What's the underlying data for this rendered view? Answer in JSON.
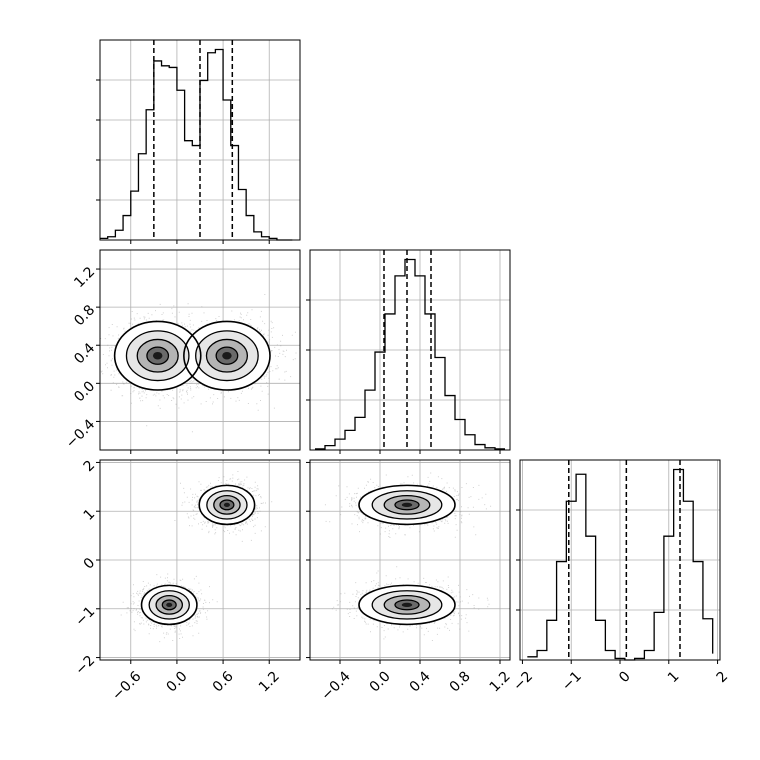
{
  "chart_data": {
    "type": "corner",
    "variables": 3,
    "grid": true,
    "quantiles": [
      0.16,
      0.5,
      0.84
    ],
    "histograms": [
      {
        "variable": 0,
        "xlim": [
          -1.0,
          1.6
        ],
        "bin_edges": [
          -1.0,
          -0.9,
          -0.8,
          -0.7,
          -0.6,
          -0.5,
          -0.4,
          -0.3,
          -0.2,
          -0.1,
          0.0,
          0.1,
          0.2,
          0.3,
          0.4,
          0.5,
          0.6,
          0.7,
          0.8,
          0.9,
          1.0,
          1.1,
          1.2,
          1.3,
          1.4,
          1.5
        ],
        "counts": [
          1,
          2,
          6,
          15,
          30,
          53,
          80,
          110,
          107,
          106,
          92,
          61,
          58,
          98,
          115,
          117,
          86,
          58,
          31,
          15,
          5,
          2,
          1,
          0,
          0
        ],
        "quantile_lines": [
          -0.3,
          0.3,
          0.72
        ]
      },
      {
        "variable": 1,
        "xlim": [
          -0.7,
          1.3
        ],
        "bin_edges": [
          -0.65,
          -0.55,
          -0.45,
          -0.35,
          -0.25,
          -0.15,
          -0.05,
          0.05,
          0.15,
          0.25,
          0.35,
          0.45,
          0.55,
          0.65,
          0.75,
          0.85,
          0.95,
          1.05,
          1.15,
          1.25
        ],
        "counts": [
          1,
          4,
          10,
          18,
          30,
          55,
          90,
          125,
          160,
          175,
          160,
          125,
          85,
          50,
          28,
          14,
          5,
          2,
          1
        ],
        "quantile_lines": [
          0.04,
          0.27,
          0.51
        ]
      },
      {
        "variable": 2,
        "xlim": [
          -2.05,
          2.05
        ],
        "bin_edges": [
          -1.9,
          -1.7,
          -1.5,
          -1.3,
          -1.1,
          -0.9,
          -0.7,
          -0.5,
          -0.3,
          -0.1,
          0.1,
          0.3,
          0.5,
          0.7,
          0.9,
          1.1,
          1.3,
          1.5,
          1.7,
          1.9
        ],
        "counts": [
          2,
          6,
          25,
          62,
          100,
          117,
          78,
          25,
          6,
          1,
          0,
          1,
          6,
          30,
          78,
          120,
          100,
          62,
          26,
          4
        ],
        "quantile_lines": [
          -1.05,
          0.13,
          1.23
        ]
      }
    ],
    "density_panels": [
      {
        "x_var": 0,
        "y_var": 1,
        "xlim": [
          -1.0,
          1.6
        ],
        "ylim": [
          -0.7,
          1.4
        ],
        "modes": [
          {
            "center": [
              -0.25,
              0.29
            ],
            "sx": 0.28,
            "sy": 0.18
          },
          {
            "center": [
              0.65,
              0.29
            ],
            "sx": 0.28,
            "sy": 0.18
          }
        ]
      },
      {
        "x_var": 0,
        "y_var": 2,
        "xlim": [
          -1.0,
          1.6
        ],
        "ylim": [
          -2.05,
          2.05
        ],
        "modes": [
          {
            "center": [
              -0.1,
              -0.92
            ],
            "sx": 0.18,
            "sy": 0.2
          },
          {
            "center": [
              0.65,
              1.13
            ],
            "sx": 0.18,
            "sy": 0.2
          }
        ]
      },
      {
        "x_var": 1,
        "y_var": 2,
        "xlim": [
          -0.7,
          1.3
        ],
        "ylim": [
          -2.05,
          2.05
        ],
        "modes": [
          {
            "center": [
              0.27,
              -0.92
            ],
            "sx": 0.24,
            "sy": 0.2
          },
          {
            "center": [
              0.27,
              1.13
            ],
            "sx": 0.24,
            "sy": 0.2
          }
        ]
      }
    ],
    "ticks": {
      "var0": {
        "values": [
          -0.6,
          0.0,
          0.6,
          1.2
        ],
        "labels": [
          "−0.6",
          "0.0",
          "0.6",
          "1.2"
        ]
      },
      "var1": {
        "values": [
          -0.4,
          0.0,
          0.4,
          0.8,
          1.2
        ],
        "labels": [
          "−0.4",
          "0.0",
          "0.4",
          "0.8",
          "1.2"
        ]
      },
      "var2": {
        "values": [
          -2,
          -1,
          0,
          1,
          2
        ],
        "labels": [
          "−2",
          "−1",
          "0",
          "1",
          "2"
        ]
      }
    }
  }
}
